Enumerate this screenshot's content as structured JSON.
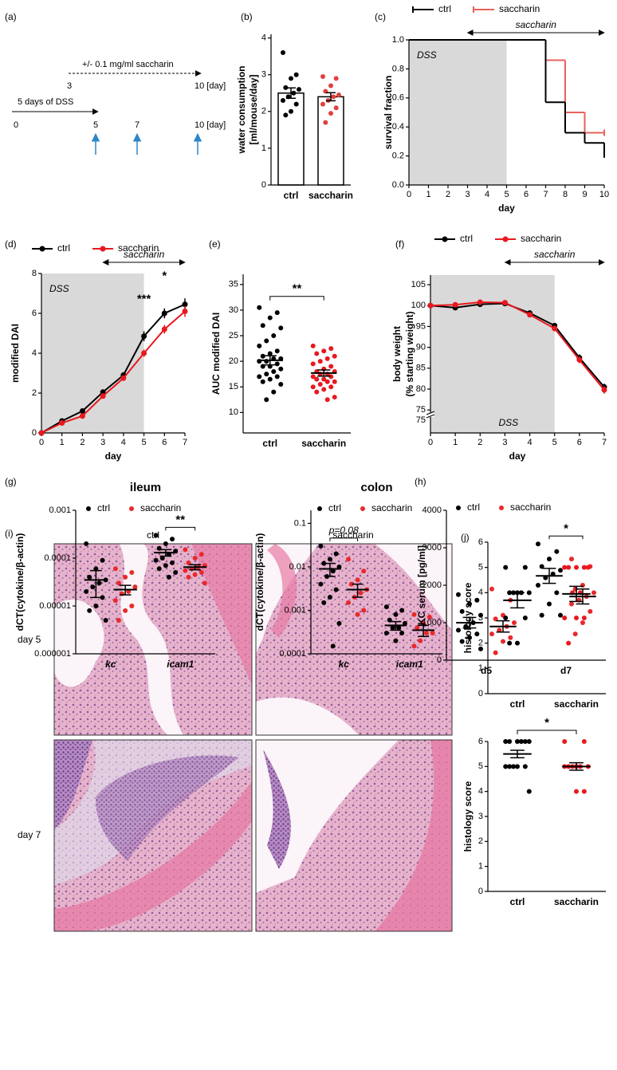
{
  "timeline": {
    "panel": "(a)",
    "dss": "5 days of DSS",
    "saccharin": "+/- 0.1 mg/ml saccharin",
    "saccharin_days": [
      "3",
      "10 [day]"
    ],
    "days": [
      "0",
      "5",
      "7",
      "10 [day]"
    ]
  },
  "histology": {
    "panel": "(i)",
    "columns": [
      "ctrl",
      "saccharin"
    ],
    "rows": [
      "day 5",
      "day 7"
    ]
  },
  "chart_data": [
    {
      "type": "bar",
      "panel": "(b)",
      "ylabel": [
        "water consumption",
        "[ml/mouse/day]"
      ],
      "categories": [
        "ctrl",
        "saccharin"
      ],
      "colors": [
        "#000000",
        "#e0413f"
      ],
      "values": [
        2.5,
        2.4
      ],
      "errors": [
        0.14,
        0.11
      ],
      "points": [
        [
          3.6,
          3.0,
          2.9,
          2.65,
          2.6,
          2.5,
          2.4,
          2.3,
          2.2,
          2.0,
          1.9
        ],
        [
          2.95,
          2.9,
          2.7,
          2.55,
          2.45,
          2.4,
          2.3,
          2.2,
          2.1,
          1.95,
          1.7
        ]
      ],
      "ylim": [
        0,
        4.1
      ],
      "yticks": [
        0,
        1,
        2,
        3,
        4
      ]
    },
    {
      "type": "step",
      "panel": "(c)",
      "legend": "top",
      "x": [
        0,
        7,
        8,
        9,
        10
      ],
      "series": [
        {
          "name": "ctrl",
          "color": "#000000",
          "values": [
            1,
            0.57,
            0.36,
            0.29,
            0.21
          ]
        },
        {
          "name": "saccharin",
          "color": "#e8605c",
          "values": [
            1,
            0.86,
            0.5,
            0.36,
            0.36
          ]
        }
      ],
      "xlim": [
        0,
        10
      ],
      "xticks": [
        0,
        1,
        2,
        3,
        4,
        5,
        6,
        7,
        8,
        9,
        10
      ],
      "ylim": [
        0,
        1
      ],
      "yticks": [
        {
          "value": 0,
          "label": "0.0"
        },
        0.2,
        0.4,
        0.6,
        0.8,
        {
          "value": 1,
          "label": "1.0"
        }
      ],
      "xlabel": "day",
      "ylabel": [
        "survival fraction"
      ],
      "shade": [
        0,
        5
      ],
      "shade_label": "DSS",
      "arrow": {
        "label": "saccharin",
        "from": 3,
        "to": 10
      }
    },
    {
      "type": "line",
      "panel": "(d)",
      "legend": "top",
      "x": [
        0,
        1,
        2,
        3,
        4,
        5,
        6,
        7
      ],
      "series": [
        {
          "name": "ctrl",
          "color": "#000000",
          "values": [
            0,
            0.6,
            1.1,
            2.05,
            2.9,
            4.85,
            6.0,
            6.45
          ],
          "errors": [
            0,
            0.06,
            0.12,
            0.12,
            0.15,
            0.25,
            0.25,
            0.3
          ]
        },
        {
          "name": "saccharin",
          "color": "#e8191f",
          "values": [
            0,
            0.5,
            0.85,
            1.85,
            2.75,
            4.0,
            5.2,
            6.1
          ],
          "errors": [
            0,
            0.05,
            0.1,
            0.1,
            0.12,
            0.18,
            0.22,
            0.28
          ]
        }
      ],
      "xlim": [
        0,
        7
      ],
      "xticks": [
        0,
        1,
        2,
        3,
        4,
        5,
        6,
        7
      ],
      "ylim": [
        0,
        8
      ],
      "yticks": [
        0,
        2,
        4,
        6,
        8
      ],
      "xlabel": "day",
      "ylabel": [
        "modified DAI"
      ],
      "shade": [
        0,
        5
      ],
      "shade_label": "DSS",
      "arrow": {
        "label": "saccharin",
        "from": 3,
        "to": 7
      },
      "sig": [
        null,
        null,
        null,
        null,
        null,
        "***",
        "*",
        null
      ]
    },
    {
      "type": "dot",
      "panel": "(e)",
      "categories": [
        "ctrl",
        "saccharin"
      ],
      "colors": [
        "#000000",
        "#e8191f"
      ],
      "values": [
        20.2,
        17.7
      ],
      "errors": [
        0.9,
        0.6
      ],
      "points": [
        [
          30.5,
          29.5,
          28.5,
          27,
          26.5,
          25,
          24,
          23,
          22,
          21.5,
          21,
          20.5,
          20.5,
          20,
          20,
          19.5,
          19,
          19,
          18.5,
          18,
          17.5,
          17,
          17,
          16.5,
          16,
          15.5,
          14,
          12.5
        ],
        [
          23,
          22.5,
          22,
          21.5,
          21,
          20.5,
          20,
          19.5,
          19,
          18.5,
          18,
          18,
          17.5,
          17.5,
          17,
          17,
          16.5,
          16.5,
          16,
          16,
          15.5,
          15,
          15,
          14.5,
          14,
          13,
          12.5
        ]
      ],
      "ylim": [
        6,
        37
      ],
      "yticks": [
        10,
        15,
        20,
        25,
        30,
        35
      ],
      "ylabel": [
        "AUC modified DAI"
      ],
      "sig": "**"
    },
    {
      "type": "line",
      "panel": "(f)",
      "legend": "top",
      "x": [
        0,
        1,
        2,
        3,
        4,
        5,
        6,
        7
      ],
      "series": [
        {
          "name": "ctrl",
          "color": "#000000",
          "values": [
            100,
            99.5,
            100.3,
            100.5,
            98.2,
            95.2,
            87.5,
            80.5
          ],
          "errors": [
            0,
            0.2,
            0.2,
            0.2,
            0.3,
            0.4,
            0.8,
            0.8
          ]
        },
        {
          "name": "saccharin",
          "color": "#e8191f",
          "values": [
            100,
            100.2,
            100.8,
            100.7,
            97.8,
            94.5,
            87,
            79.8
          ],
          "errors": [
            0,
            0.2,
            0.2,
            0.2,
            0.3,
            0.4,
            0.8,
            0.9
          ]
        }
      ],
      "xlim": [
        0,
        7
      ],
      "xticks": [
        0,
        1,
        2,
        3,
        4,
        5,
        6,
        7
      ],
      "ylim": [
        69.5,
        107.3
      ],
      "yticks": [
        75,
        80,
        85,
        90,
        95,
        100,
        105
      ],
      "ybreak": 75,
      "xlabel": "day",
      "ylabel": [
        "body weight",
        "(% starting weight)"
      ],
      "shade": [
        0,
        5
      ],
      "shade_label": "DSS",
      "arrow": {
        "label": "saccharin",
        "from": 3,
        "to": 7
      }
    },
    {
      "type": "dot",
      "panel": "(g)",
      "title": "ileum",
      "legend": "top",
      "log": true,
      "categories": [
        "kc",
        "icam1"
      ],
      "series": [
        {
          "name": "ctrl",
          "color": "#000000",
          "values": [
            3.5e-05,
            0.00013
          ],
          "errors": [
            2e-05,
            2e-05
          ],
          "points": [
            [
              0.0002,
              9e-05,
              6e-05,
              4e-05,
              3.5e-05,
              3e-05,
              2.5e-05,
              2e-05,
              1.5e-05,
              1e-05,
              8e-06,
              5e-06
            ],
            [
              0.0003,
              0.00025,
              0.0002,
              0.00016,
              0.00014,
              0.00012,
              0.0001,
              9e-05,
              8e-05,
              7e-05,
              6e-05,
              5e-05,
              4e-05
            ]
          ]
        },
        {
          "name": "saccharin",
          "color": "#e8292b",
          "values": [
            2.2e-05,
            6.5e-05
          ],
          "errors": [
            5e-06,
            8e-06
          ],
          "points": [
            [
              6e-05,
              5e-05,
              4e-05,
              3e-05,
              2.5e-05,
              2e-05,
              1.8e-05,
              1.3e-05,
              1e-05,
              8e-06,
              5e-06
            ],
            [
              0.00015,
              0.00012,
              0.0001,
              8e-05,
              7e-05,
              6.5e-05,
              6e-05,
              5.5e-05,
              5e-05,
              4.5e-05,
              4e-05,
              3e-05
            ]
          ]
        }
      ],
      "ylim": [
        1e-06,
        0.001
      ],
      "yticks": [
        0.001,
        0.0001,
        1e-05,
        1e-06
      ],
      "ylabel": [
        "dCT(cytokine/β-actin)"
      ],
      "sig": [
        null,
        "**"
      ]
    },
    {
      "type": "dot",
      "title": "colon",
      "legend": "top",
      "log": true,
      "categories": [
        "kc",
        "icam1"
      ],
      "series": [
        {
          "name": "ctrl",
          "color": "#000000",
          "values": [
            0.009,
            0.00045
          ],
          "errors": [
            0.003,
            0.0001
          ],
          "points": [
            [
              0.03,
              0.02,
              0.015,
              0.012,
              0.01,
              0.008,
              0.006,
              0.004,
              0.003,
              0.002,
              0.0015,
              0.0005,
              0.00015
            ],
            [
              0.0012,
              0.001,
              0.0008,
              0.0006,
              0.0005,
              0.0004,
              0.0004,
              0.0003,
              0.0003,
              0.0002
            ]
          ]
        },
        {
          "name": "saccharin",
          "color": "#e8292b",
          "values": [
            0.003,
            0.00035
          ],
          "errors": [
            0.001,
            0.0001
          ],
          "points": [
            [
              0.015,
              0.008,
              0.005,
              0.004,
              0.003,
              0.0025,
              0.002,
              0.0015,
              0.001,
              0.0008
            ],
            [
              0.0008,
              0.0007,
              0.0005,
              0.0004,
              0.0003,
              0.0003,
              0.0002,
              0.00015
            ]
          ]
        }
      ],
      "ylim": [
        0.0001,
        0.2
      ],
      "yticks": [
        0.1,
        0.01,
        0.001,
        0.0001
      ],
      "ylabel": [
        "dCT(cytokine/β-actin)"
      ],
      "sig": [
        "p=0.08",
        null
      ]
    },
    {
      "type": "dot",
      "panel": "(h)",
      "legend": "top",
      "categories": [
        "d5",
        "d7"
      ],
      "series": [
        {
          "name": "ctrl",
          "color": "#000000",
          "values": [
            1000,
            2250
          ],
          "errors": [
            140,
            200
          ],
          "points": [
            [
              1750,
              1600,
              1500,
              1300,
              1200,
              1000,
              900,
              800,
              700,
              600,
              500,
              300
            ],
            [
              3100,
              2900,
              2700,
              2500,
              2400,
              2300,
              2200,
              2000,
              1800,
              1500,
              1200,
              1200
            ]
          ]
        },
        {
          "name": "saccharin",
          "color": "#e8292b",
          "values": [
            900,
            1700
          ],
          "errors": [
            150,
            200
          ],
          "points": [
            [
              1900,
              1600,
              1200,
              1100,
              1000,
              900,
              800,
              700,
              600,
              500,
              200
            ],
            [
              2700,
              2500,
              2000,
              1900,
              1800,
              1700,
              1600,
              1500,
              1300,
              1000,
              700
            ]
          ]
        }
      ],
      "ylim": [
        0,
        4000
      ],
      "yticks": [
        0,
        1000,
        2000,
        3000,
        4000
      ],
      "ylabel": [
        "KC serum [pg/ml]"
      ],
      "sig": [
        null,
        "*"
      ]
    },
    {
      "type": "dot",
      "panel": "(j)",
      "categories": [
        "ctrl",
        "saccharin"
      ],
      "colors": [
        "#000000",
        "#e8191f"
      ],
      "values": [
        3.7,
        3.95
      ],
      "errors": [
        0.3,
        0.3
      ],
      "points": [
        [
          5,
          5,
          4,
          4,
          4,
          4,
          4,
          3,
          3,
          2,
          2
        ],
        [
          5,
          5,
          5,
          5,
          5,
          4,
          4,
          3,
          3,
          3,
          2
        ]
      ],
      "ylim": [
        0,
        6
      ],
      "yticks": [
        0,
        1,
        2,
        3,
        4,
        5,
        6
      ],
      "ylabel": [
        "histology score"
      ]
    },
    {
      "type": "dot",
      "categories": [
        "ctrl",
        "saccharin"
      ],
      "colors": [
        "#000000",
        "#e8191f"
      ],
      "values": [
        5.5,
        5.0
      ],
      "errors": [
        0.15,
        0.15
      ],
      "points": [
        [
          6,
          6,
          6,
          6,
          6,
          6,
          5,
          5,
          5,
          5,
          5,
          4
        ],
        [
          6,
          6,
          5,
          5,
          5,
          5,
          5,
          5,
          4,
          4
        ]
      ],
      "ylim": [
        0,
        6
      ],
      "yticks": [
        0,
        1,
        2,
        3,
        4,
        5,
        6
      ],
      "ylabel": [
        "histology score"
      ],
      "sig": "*"
    }
  ]
}
